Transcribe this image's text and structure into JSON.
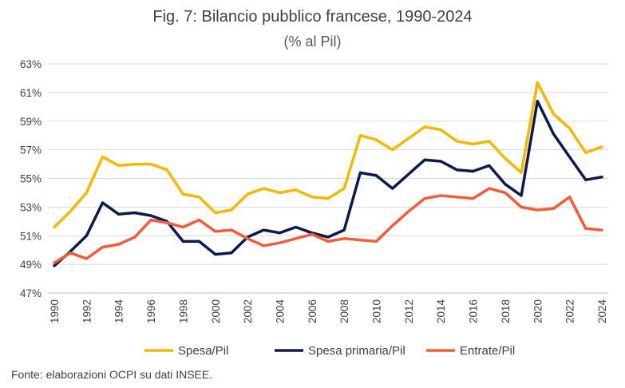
{
  "title": "Fig. 7: Bilancio pubblico francese, 1990-2024",
  "subtitle": "(% al Pil)",
  "source": "Fonte: elaborazioni OCPI su dati INSEE.",
  "chart_data": {
    "type": "line",
    "x": [
      1990,
      1991,
      1992,
      1993,
      1994,
      1995,
      1996,
      1997,
      1998,
      1999,
      2000,
      2001,
      2002,
      2003,
      2004,
      2005,
      2006,
      2007,
      2008,
      2009,
      2010,
      2011,
      2012,
      2013,
      2014,
      2015,
      2016,
      2017,
      2018,
      2019,
      2020,
      2021,
      2022,
      2023,
      2024
    ],
    "xticks": [
      "1990",
      "1992",
      "1994",
      "1996",
      "1998",
      "2000",
      "2002",
      "2004",
      "2006",
      "2008",
      "2010",
      "2012",
      "2014",
      "2016",
      "2018",
      "2020",
      "2022",
      "2024"
    ],
    "yticks": [
      "47%",
      "49%",
      "51%",
      "53%",
      "55%",
      "57%",
      "59%",
      "61%",
      "63%"
    ],
    "ylim": [
      47,
      63
    ],
    "grid": "horizontal",
    "legend_position": "bottom",
    "series": [
      {
        "name": "Spesa/Pil",
        "color": "#F5B800",
        "values": [
          51.6,
          52.7,
          54.0,
          56.5,
          55.9,
          56.0,
          56.0,
          55.6,
          53.9,
          53.7,
          52.6,
          52.8,
          53.9,
          54.3,
          54.0,
          54.2,
          53.7,
          53.6,
          54.3,
          58.0,
          57.7,
          57.0,
          57.8,
          58.6,
          58.4,
          57.6,
          57.4,
          57.6,
          56.4,
          55.4,
          61.7,
          59.5,
          58.5,
          56.8,
          57.2
        ]
      },
      {
        "name": "Spesa primaria/Pil",
        "color": "#0D1B4C",
        "values": [
          48.9,
          49.9,
          51.0,
          53.3,
          52.5,
          52.6,
          52.4,
          52.0,
          50.6,
          50.6,
          49.7,
          49.8,
          50.9,
          51.4,
          51.2,
          51.6,
          51.2,
          50.9,
          51.4,
          55.4,
          55.2,
          54.3,
          55.3,
          56.3,
          56.2,
          55.6,
          55.5,
          55.9,
          54.6,
          53.8,
          60.4,
          58.1,
          56.5,
          54.9,
          55.1
        ]
      },
      {
        "name": "Entrate/Pil",
        "color": "#F25C3B",
        "values": [
          49.1,
          49.8,
          49.4,
          50.2,
          50.4,
          50.9,
          52.1,
          51.9,
          51.6,
          52.1,
          51.3,
          51.4,
          50.8,
          50.3,
          50.5,
          50.8,
          51.1,
          50.6,
          50.8,
          50.7,
          50.6,
          51.7,
          52.7,
          53.6,
          53.8,
          53.7,
          53.6,
          54.3,
          54.0,
          53.0,
          52.8,
          52.9,
          53.7,
          51.5,
          51.4
        ]
      }
    ]
  }
}
